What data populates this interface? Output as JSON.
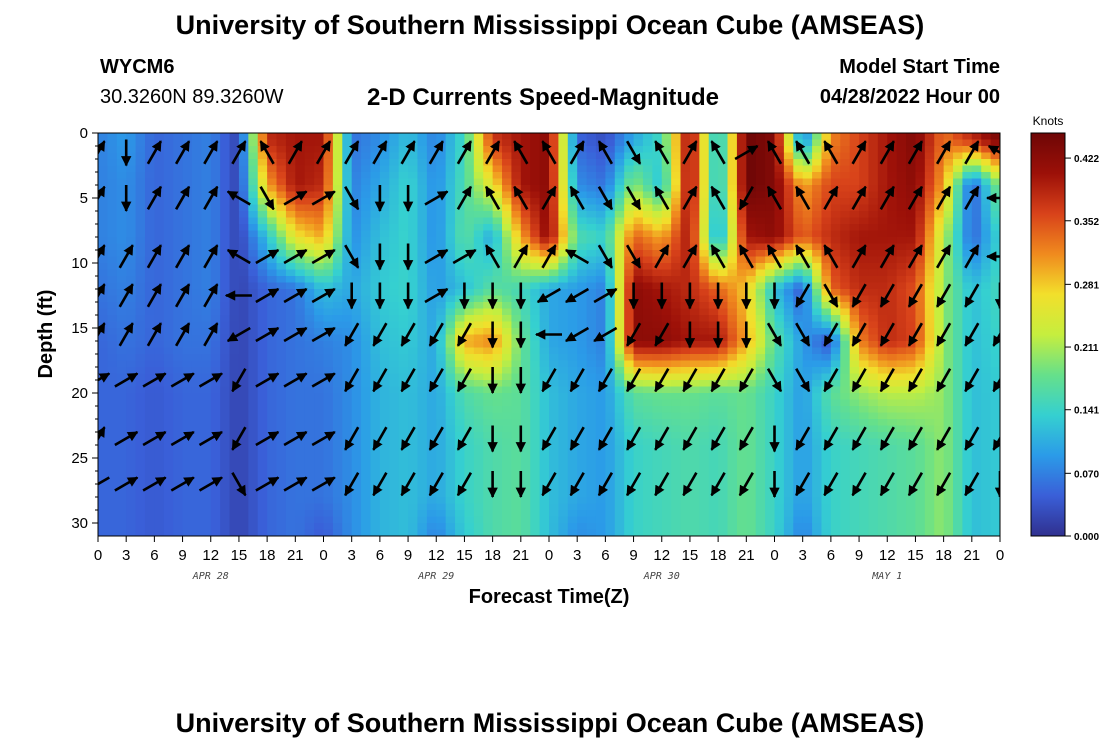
{
  "header": {
    "title": "University of Southern Mississippi Ocean Cube (AMSEAS)",
    "station": "WYCM6",
    "coords": "30.3260N  89.3260W",
    "subtitle": "2-D Currents Speed-Magnitude",
    "model_start_label": "Model Start Time",
    "model_start_value": "04/28/2022 Hour 00"
  },
  "footer": {
    "title": "University of Southern Mississippi Ocean Cube (AMSEAS)"
  },
  "chart_data": {
    "type": "heatmap",
    "xlabel": "Forecast Time(Z)",
    "ylabel": "Depth (ft)",
    "xlim": [
      0,
      96
    ],
    "ylim": [
      0,
      31
    ],
    "y_inverted": true,
    "x_tick_labels": [
      "0",
      "3",
      "6",
      "9",
      "12",
      "15",
      "18",
      "21",
      "0",
      "3",
      "6",
      "9",
      "12",
      "15",
      "18",
      "21",
      "0",
      "3",
      "6",
      "9",
      "12",
      "15",
      "18",
      "21",
      "0",
      "3",
      "6",
      "9",
      "12",
      "15",
      "18",
      "21",
      "0"
    ],
    "y_tick_labels": [
      "0",
      "5",
      "10",
      "15",
      "20",
      "25",
      "30"
    ],
    "day_labels": [
      {
        "text": "APR 28",
        "hour": 12
      },
      {
        "text": "APR 29",
        "hour": 36
      },
      {
        "text": "APR 30",
        "hour": 60
      },
      {
        "text": "MAY 1",
        "hour": 84
      }
    ],
    "colorbar": {
      "label": "Knots",
      "min": 0.0,
      "max": 0.45,
      "ticks": [
        "0.422",
        "0.352",
        "0.281",
        "0.211",
        "0.141",
        "0.070",
        "0.000"
      ],
      "tick_values": [
        0.422,
        0.352,
        0.281,
        0.211,
        0.141,
        0.07,
        0.0
      ],
      "colors": [
        "#30308f",
        "#3a5fd8",
        "#2b9be8",
        "#35d0d0",
        "#66e08a",
        "#c6ee3e",
        "#f2df2b",
        "#f08a1e",
        "#d8421a",
        "#9c1008",
        "#6e0606"
      ]
    },
    "depth_samples_ft": [
      0.5,
      4,
      8,
      12,
      16,
      20,
      24,
      28,
      31
    ],
    "hour_samples": [
      0,
      3,
      6,
      9,
      12,
      15,
      18,
      21,
      24,
      27,
      30,
      33,
      36,
      39,
      42,
      45,
      48,
      51,
      54,
      57,
      60,
      63,
      66,
      69,
      72,
      75,
      78,
      81,
      84,
      87,
      90,
      93,
      96
    ],
    "speed_knots": [
      [
        0.07,
        0.09,
        0.05,
        0.06,
        0.07,
        0.02,
        0.38,
        0.4,
        0.4,
        0.06,
        0.08,
        0.12,
        0.07,
        0.15,
        0.37,
        0.4,
        0.42,
        0.05,
        0.03,
        0.1,
        0.15,
        0.42,
        0.1,
        0.45,
        0.43,
        0.06,
        0.32,
        0.36,
        0.4,
        0.43,
        0.33,
        0.38,
        0.44
      ],
      [
        0.07,
        0.08,
        0.05,
        0.06,
        0.07,
        0.02,
        0.3,
        0.4,
        0.38,
        0.07,
        0.1,
        0.14,
        0.08,
        0.16,
        0.26,
        0.4,
        0.42,
        0.08,
        0.06,
        0.2,
        0.12,
        0.42,
        0.1,
        0.45,
        0.43,
        0.3,
        0.36,
        0.36,
        0.4,
        0.42,
        0.3,
        0.04,
        0.2
      ],
      [
        0.07,
        0.08,
        0.05,
        0.06,
        0.07,
        0.02,
        0.12,
        0.26,
        0.3,
        0.08,
        0.12,
        0.14,
        0.08,
        0.17,
        0.1,
        0.3,
        0.42,
        0.16,
        0.14,
        0.34,
        0.3,
        0.4,
        0.08,
        0.4,
        0.42,
        0.34,
        0.38,
        0.4,
        0.4,
        0.4,
        0.22,
        0.05,
        0.14
      ],
      [
        0.06,
        0.07,
        0.05,
        0.06,
        0.07,
        0.02,
        0.05,
        0.06,
        0.12,
        0.1,
        0.13,
        0.14,
        0.09,
        0.12,
        0.17,
        0.15,
        0.1,
        0.09,
        0.07,
        0.42,
        0.4,
        0.38,
        0.34,
        0.28,
        0.12,
        0.04,
        0.34,
        0.38,
        0.38,
        0.35,
        0.2,
        0.12,
        0.15
      ],
      [
        0.05,
        0.06,
        0.05,
        0.06,
        0.06,
        0.02,
        0.05,
        0.06,
        0.07,
        0.08,
        0.12,
        0.13,
        0.1,
        0.3,
        0.32,
        0.18,
        0.1,
        0.09,
        0.07,
        0.42,
        0.42,
        0.4,
        0.4,
        0.3,
        0.17,
        0.09,
        0.03,
        0.32,
        0.38,
        0.36,
        0.2,
        0.12,
        0.14
      ],
      [
        0.05,
        0.05,
        0.04,
        0.05,
        0.05,
        0.02,
        0.05,
        0.06,
        0.06,
        0.08,
        0.11,
        0.12,
        0.1,
        0.16,
        0.18,
        0.17,
        0.12,
        0.1,
        0.09,
        0.17,
        0.18,
        0.18,
        0.17,
        0.18,
        0.14,
        0.09,
        0.17,
        0.2,
        0.22,
        0.22,
        0.2,
        0.12,
        0.13
      ],
      [
        0.05,
        0.05,
        0.04,
        0.05,
        0.05,
        0.02,
        0.05,
        0.06,
        0.06,
        0.08,
        0.11,
        0.12,
        0.1,
        0.14,
        0.16,
        0.17,
        0.12,
        0.1,
        0.09,
        0.14,
        0.15,
        0.16,
        0.15,
        0.18,
        0.14,
        0.09,
        0.14,
        0.15,
        0.16,
        0.17,
        0.2,
        0.12,
        0.13
      ],
      [
        0.05,
        0.05,
        0.04,
        0.05,
        0.05,
        0.02,
        0.05,
        0.06,
        0.06,
        0.08,
        0.11,
        0.12,
        0.1,
        0.14,
        0.16,
        0.17,
        0.12,
        0.1,
        0.09,
        0.14,
        0.15,
        0.16,
        0.15,
        0.18,
        0.14,
        0.09,
        0.14,
        0.15,
        0.16,
        0.17,
        0.2,
        0.12,
        0.13
      ],
      [
        0.05,
        0.05,
        0.04,
        0.05,
        0.05,
        0.02,
        0.05,
        0.06,
        0.04,
        0.08,
        0.11,
        0.12,
        0.07,
        0.13,
        0.16,
        0.17,
        0.12,
        0.08,
        0.09,
        0.14,
        0.15,
        0.16,
        0.15,
        0.18,
        0.14,
        0.07,
        0.14,
        0.15,
        0.16,
        0.17,
        0.2,
        0.12,
        0.13
      ]
    ],
    "vector_depths_ft": [
      1.5,
      5,
      9.5,
      12.5,
      15.5,
      19,
      23.5,
      27
    ],
    "vector_direction_deg": [
      [
        30,
        180,
        30,
        30,
        30,
        30,
        330,
        30,
        30,
        30,
        30,
        30,
        30,
        30,
        30,
        330,
        330,
        30,
        330,
        150,
        330,
        30,
        330,
        60,
        330,
        330,
        330,
        30,
        30,
        30,
        30,
        30,
        300
      ],
      [
        30,
        180,
        30,
        30,
        30,
        300,
        150,
        60,
        60,
        150,
        180,
        180,
        60,
        30,
        330,
        330,
        30,
        330,
        150,
        150,
        330,
        30,
        330,
        210,
        330,
        330,
        30,
        30,
        30,
        30,
        30,
        30,
        270
      ],
      [
        30,
        30,
        30,
        30,
        30,
        300,
        60,
        60,
        60,
        150,
        180,
        180,
        60,
        60,
        330,
        30,
        30,
        300,
        150,
        150,
        30,
        30,
        330,
        330,
        330,
        330,
        330,
        30,
        30,
        30,
        30,
        30,
        270
      ],
      [
        30,
        30,
        30,
        30,
        30,
        270,
        60,
        60,
        60,
        180,
        180,
        180,
        60,
        180,
        180,
        180,
        240,
        240,
        60,
        180,
        180,
        180,
        180,
        180,
        180,
        210,
        150,
        210,
        210,
        210,
        210,
        210,
        180
      ],
      [
        30,
        30,
        30,
        30,
        30,
        240,
        60,
        60,
        60,
        210,
        210,
        210,
        210,
        210,
        180,
        180,
        270,
        240,
        240,
        210,
        210,
        180,
        180,
        180,
        150,
        150,
        210,
        210,
        210,
        210,
        210,
        210,
        210
      ],
      [
        60,
        60,
        60,
        60,
        60,
        210,
        60,
        60,
        60,
        210,
        210,
        210,
        210,
        210,
        180,
        180,
        210,
        210,
        210,
        210,
        210,
        210,
        210,
        210,
        150,
        150,
        210,
        210,
        210,
        210,
        210,
        210,
        210
      ],
      [
        30,
        60,
        60,
        60,
        60,
        210,
        60,
        60,
        60,
        210,
        210,
        210,
        210,
        210,
        180,
        180,
        210,
        210,
        210,
        210,
        210,
        210,
        210,
        210,
        180,
        210,
        210,
        210,
        210,
        210,
        210,
        210,
        210
      ],
      [
        240,
        60,
        60,
        60,
        60,
        150,
        60,
        60,
        60,
        210,
        210,
        210,
        210,
        210,
        180,
        180,
        210,
        210,
        210,
        210,
        210,
        210,
        210,
        210,
        180,
        210,
        210,
        210,
        210,
        210,
        210,
        210,
        180
      ]
    ]
  }
}
